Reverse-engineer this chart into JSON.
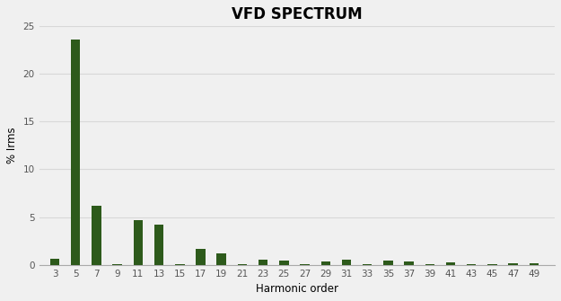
{
  "title": "VFD SPECTRUM",
  "xlabel": "Harmonic order",
  "ylabel": "% Irms",
  "bar_color": "#2d5a1b",
  "background_color": "#f0f0f0",
  "grid_color": "#d8d8d8",
  "categories": [
    3,
    5,
    7,
    9,
    11,
    13,
    15,
    17,
    19,
    21,
    23,
    25,
    27,
    29,
    31,
    33,
    35,
    37,
    39,
    41,
    43,
    45,
    47,
    49
  ],
  "values": [
    0.6,
    23.6,
    6.2,
    0.1,
    4.7,
    4.2,
    0.05,
    1.7,
    1.2,
    0.05,
    0.55,
    0.45,
    0.05,
    0.35,
    0.5,
    0.05,
    0.45,
    0.35,
    0.05,
    0.25,
    0.1,
    0.05,
    0.15,
    0.2
  ],
  "ylim": [
    0,
    25
  ],
  "yticks": [
    0,
    5,
    10,
    15,
    20,
    25
  ],
  "title_fontsize": 12,
  "label_fontsize": 8.5,
  "tick_fontsize": 7.5
}
